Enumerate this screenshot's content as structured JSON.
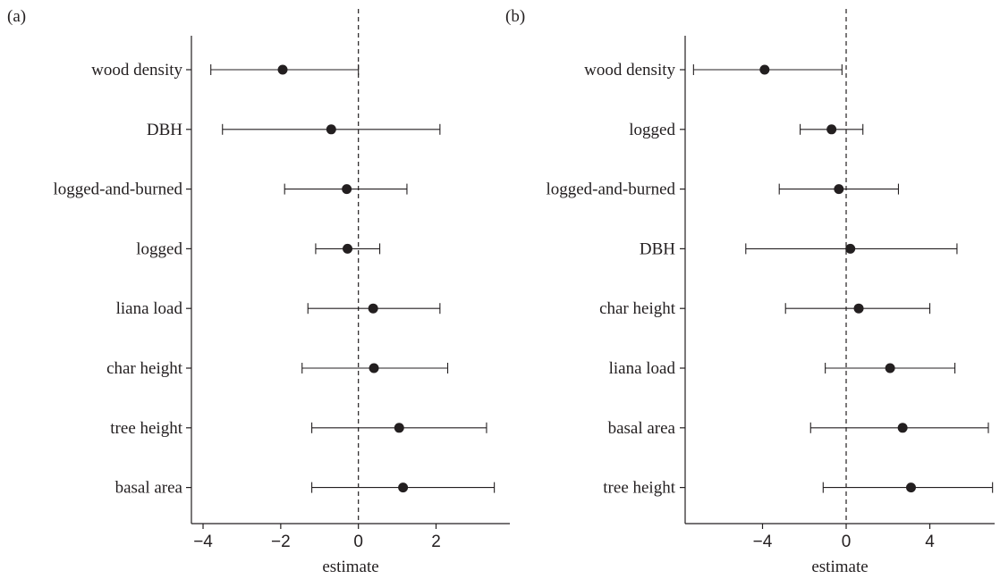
{
  "chart_data": [
    {
      "type": "scatter",
      "panel_label": "(a)",
      "xlabel": "estimate",
      "xlim": [
        -4.3,
        3.9
      ],
      "xticks": [
        -4,
        -2,
        0,
        2
      ],
      "tick_labels": [
        "−4",
        "−2",
        "0",
        "2"
      ],
      "reference_line": 0,
      "categories": [
        "wood density",
        "DBH",
        "logged-and-burned",
        "logged",
        "liana load",
        "char height",
        "tree height",
        "basal area"
      ],
      "estimate": [
        -1.95,
        -0.7,
        -0.3,
        -0.28,
        0.38,
        0.4,
        1.05,
        1.15
      ],
      "lower": [
        -3.8,
        -3.5,
        -1.9,
        -1.1,
        -1.3,
        -1.45,
        -1.2,
        -1.2
      ],
      "upper": [
        0.0,
        2.1,
        1.25,
        0.55,
        2.1,
        2.3,
        3.3,
        3.5
      ]
    },
    {
      "type": "scatter",
      "panel_label": "(b)",
      "xlabel": "estimate",
      "xlim": [
        -7.7,
        7.1
      ],
      "xticks": [
        -4,
        0,
        4
      ],
      "tick_labels": [
        "−4",
        "0",
        "4"
      ],
      "reference_line": 0,
      "categories": [
        "wood density",
        "logged",
        "logged-and-burned",
        "DBH",
        "char height",
        "liana load",
        "basal area",
        "tree height"
      ],
      "estimate": [
        -3.9,
        -0.7,
        -0.35,
        0.2,
        0.6,
        2.1,
        2.7,
        3.1
      ],
      "lower": [
        -7.3,
        -2.2,
        -3.2,
        -4.8,
        -2.9,
        -1.0,
        -1.7,
        -1.1
      ],
      "upper": [
        -0.2,
        0.8,
        2.5,
        5.3,
        4.0,
        5.2,
        6.8,
        7.0
      ]
    }
  ]
}
